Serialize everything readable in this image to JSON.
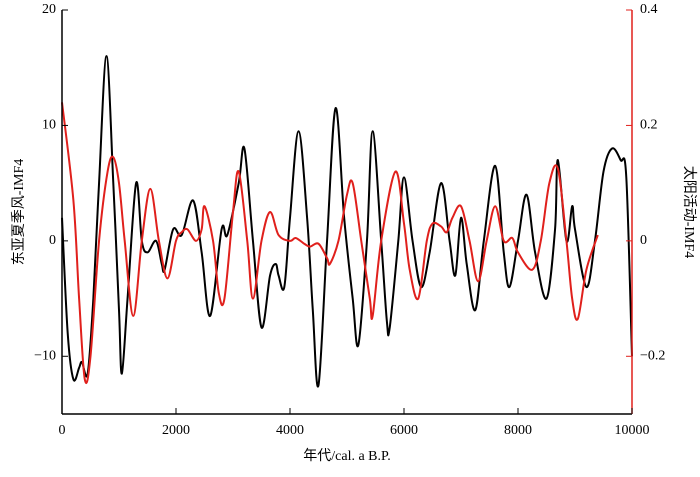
{
  "chart_data": {
    "type": "line",
    "xlabel": "年代/cal. a B.P.",
    "ylabel": "东亚夏季风-IMF4",
    "y2label": "太阳活动-IMF4",
    "xlim": [
      0,
      10000
    ],
    "xticks": [
      0,
      2000,
      4000,
      6000,
      8000,
      10000
    ],
    "ylim": [
      -15,
      20
    ],
    "yticks": [
      {
        "value": -10,
        "label": "−10"
      },
      0,
      10,
      20
    ],
    "y2lim": [
      -0.3,
      0.4
    ],
    "y2ticks": [
      {
        "value": -0.2,
        "label": "−0.2"
      },
      0,
      0.2,
      0.4
    ],
    "y2color": "#e0201c",
    "series": [
      {
        "color": "#000000",
        "axis": "y",
        "x": [
          0,
          100,
          200,
          300,
          350,
          450,
          550,
          650,
          780,
          900,
          1000,
          1050,
          1150,
          1300,
          1400,
          1500,
          1650,
          1750,
          1800,
          1950,
          2100,
          2300,
          2450,
          2600,
          2800,
          2900,
          3100,
          3200,
          3350,
          3500,
          3650,
          3750,
          3800,
          3900,
          4000,
          4150,
          4300,
          4400,
          4500,
          4650,
          4800,
          4950,
          5100,
          5200,
          5350,
          5450,
          5600,
          5700,
          5750,
          5900,
          6000,
          6150,
          6300,
          6450,
          6650,
          6800,
          6900,
          7000,
          7100,
          7250,
          7400,
          7600,
          7750,
          7850,
          8000,
          8150,
          8300,
          8500,
          8650,
          8700,
          8850,
          8950,
          9000,
          9200,
          9350,
          9500,
          9650,
          9800,
          9900,
          10000
        ],
        "values": [
          2,
          -8,
          -12,
          -11,
          -10.5,
          -11.5,
          -5,
          5,
          16,
          5,
          -6,
          -11.5,
          -5,
          5,
          0,
          -1,
          0,
          -2,
          -2.5,
          1,
          0.5,
          3.5,
          -1,
          -6.5,
          1,
          0.5,
          5,
          8,
          0,
          -7.5,
          -3,
          -2,
          -3,
          -4,
          2,
          9.5,
          2,
          -6,
          -12.5,
          0,
          11.5,
          2,
          -5,
          -9,
          0,
          9.5,
          0,
          -7,
          -7.5,
          0,
          5.5,
          0,
          -4,
          -1,
          5,
          0,
          -3,
          2,
          -2,
          -6,
          0,
          6.5,
          -1,
          -4,
          0,
          4,
          -1,
          -5,
          1,
          7,
          0,
          3,
          1,
          -4,
          0,
          6,
          8,
          7,
          5.5,
          -10
        ]
      },
      {
        "color": "#e0201c",
        "axis": "y2",
        "x": [
          0,
          200,
          300,
          400,
          500,
          650,
          800,
          900,
          1000,
          1100,
          1250,
          1400,
          1550,
          1700,
          1850,
          2000,
          2100,
          2200,
          2350,
          2450,
          2500,
          2650,
          2750,
          2850,
          3000,
          3100,
          3250,
          3350,
          3500,
          3650,
          3800,
          4000,
          4100,
          4250,
          4350,
          4500,
          4650,
          4700,
          4850,
          5000,
          5100,
          5250,
          5400,
          5450,
          5600,
          5850,
          6000,
          6100,
          6250,
          6400,
          6500,
          6650,
          6750,
          6850,
          7000,
          7150,
          7300,
          7450,
          7600,
          7750,
          7900,
          8000,
          8250,
          8400,
          8550,
          8700,
          8850,
          8950,
          9050,
          9200,
          9400
        ],
        "values": [
          0.24,
          0.07,
          -0.1,
          -0.24,
          -0.2,
          0,
          0.12,
          0.145,
          0.1,
          0,
          -0.13,
          0,
          0.09,
          0,
          -0.065,
          0,
          0.015,
          0.02,
          0,
          0.02,
          0.06,
          0,
          -0.09,
          -0.1,
          0.05,
          0.12,
          0,
          -0.1,
          0,
          0.05,
          0.01,
          0,
          0.005,
          -0.005,
          -0.01,
          -0.005,
          -0.03,
          -0.04,
          0,
          0.08,
          0.1,
          0,
          -0.1,
          -0.13,
          0,
          0.12,
          0.03,
          -0.05,
          -0.1,
          0,
          0.03,
          0.025,
          0.015,
          0.04,
          0.06,
          0,
          -0.07,
          0,
          0.06,
          0,
          0.005,
          -0.02,
          -0.05,
          0,
          0.1,
          0.125,
          0,
          -0.1,
          -0.135,
          -0.05,
          0.01
        ]
      }
    ]
  }
}
